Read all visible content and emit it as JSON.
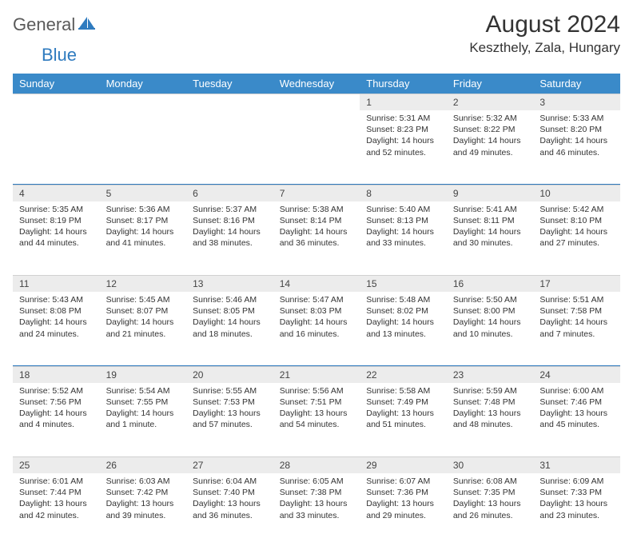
{
  "brand": {
    "part1": "General",
    "part2": "Blue"
  },
  "title": "August 2024",
  "location": "Keszthely, Zala, Hungary",
  "colors": {
    "header_bg": "#3a8ac9",
    "accent": "#2f7bbf",
    "daynum_bg": "#ececec",
    "text": "#333333",
    "logo_gray": "#5a5a5a"
  },
  "weekdays": [
    "Sunday",
    "Monday",
    "Tuesday",
    "Wednesday",
    "Thursday",
    "Friday",
    "Saturday"
  ],
  "weeks": [
    [
      null,
      null,
      null,
      null,
      {
        "n": "1",
        "sr": "5:31 AM",
        "ss": "8:23 PM",
        "dl": "14 hours and 52 minutes."
      },
      {
        "n": "2",
        "sr": "5:32 AM",
        "ss": "8:22 PM",
        "dl": "14 hours and 49 minutes."
      },
      {
        "n": "3",
        "sr": "5:33 AM",
        "ss": "8:20 PM",
        "dl": "14 hours and 46 minutes."
      }
    ],
    [
      {
        "n": "4",
        "sr": "5:35 AM",
        "ss": "8:19 PM",
        "dl": "14 hours and 44 minutes."
      },
      {
        "n": "5",
        "sr": "5:36 AM",
        "ss": "8:17 PM",
        "dl": "14 hours and 41 minutes."
      },
      {
        "n": "6",
        "sr": "5:37 AM",
        "ss": "8:16 PM",
        "dl": "14 hours and 38 minutes."
      },
      {
        "n": "7",
        "sr": "5:38 AM",
        "ss": "8:14 PM",
        "dl": "14 hours and 36 minutes."
      },
      {
        "n": "8",
        "sr": "5:40 AM",
        "ss": "8:13 PM",
        "dl": "14 hours and 33 minutes."
      },
      {
        "n": "9",
        "sr": "5:41 AM",
        "ss": "8:11 PM",
        "dl": "14 hours and 30 minutes."
      },
      {
        "n": "10",
        "sr": "5:42 AM",
        "ss": "8:10 PM",
        "dl": "14 hours and 27 minutes."
      }
    ],
    [
      {
        "n": "11",
        "sr": "5:43 AM",
        "ss": "8:08 PM",
        "dl": "14 hours and 24 minutes."
      },
      {
        "n": "12",
        "sr": "5:45 AM",
        "ss": "8:07 PM",
        "dl": "14 hours and 21 minutes."
      },
      {
        "n": "13",
        "sr": "5:46 AM",
        "ss": "8:05 PM",
        "dl": "14 hours and 18 minutes."
      },
      {
        "n": "14",
        "sr": "5:47 AM",
        "ss": "8:03 PM",
        "dl": "14 hours and 16 minutes."
      },
      {
        "n": "15",
        "sr": "5:48 AM",
        "ss": "8:02 PM",
        "dl": "14 hours and 13 minutes."
      },
      {
        "n": "16",
        "sr": "5:50 AM",
        "ss": "8:00 PM",
        "dl": "14 hours and 10 minutes."
      },
      {
        "n": "17",
        "sr": "5:51 AM",
        "ss": "7:58 PM",
        "dl": "14 hours and 7 minutes."
      }
    ],
    [
      {
        "n": "18",
        "sr": "5:52 AM",
        "ss": "7:56 PM",
        "dl": "14 hours and 4 minutes."
      },
      {
        "n": "19",
        "sr": "5:54 AM",
        "ss": "7:55 PM",
        "dl": "14 hours and 1 minute."
      },
      {
        "n": "20",
        "sr": "5:55 AM",
        "ss": "7:53 PM",
        "dl": "13 hours and 57 minutes."
      },
      {
        "n": "21",
        "sr": "5:56 AM",
        "ss": "7:51 PM",
        "dl": "13 hours and 54 minutes."
      },
      {
        "n": "22",
        "sr": "5:58 AM",
        "ss": "7:49 PM",
        "dl": "13 hours and 51 minutes."
      },
      {
        "n": "23",
        "sr": "5:59 AM",
        "ss": "7:48 PM",
        "dl": "13 hours and 48 minutes."
      },
      {
        "n": "24",
        "sr": "6:00 AM",
        "ss": "7:46 PM",
        "dl": "13 hours and 45 minutes."
      }
    ],
    [
      {
        "n": "25",
        "sr": "6:01 AM",
        "ss": "7:44 PM",
        "dl": "13 hours and 42 minutes."
      },
      {
        "n": "26",
        "sr": "6:03 AM",
        "ss": "7:42 PM",
        "dl": "13 hours and 39 minutes."
      },
      {
        "n": "27",
        "sr": "6:04 AM",
        "ss": "7:40 PM",
        "dl": "13 hours and 36 minutes."
      },
      {
        "n": "28",
        "sr": "6:05 AM",
        "ss": "7:38 PM",
        "dl": "13 hours and 33 minutes."
      },
      {
        "n": "29",
        "sr": "6:07 AM",
        "ss": "7:36 PM",
        "dl": "13 hours and 29 minutes."
      },
      {
        "n": "30",
        "sr": "6:08 AM",
        "ss": "7:35 PM",
        "dl": "13 hours and 26 minutes."
      },
      {
        "n": "31",
        "sr": "6:09 AM",
        "ss": "7:33 PM",
        "dl": "13 hours and 23 minutes."
      }
    ]
  ]
}
